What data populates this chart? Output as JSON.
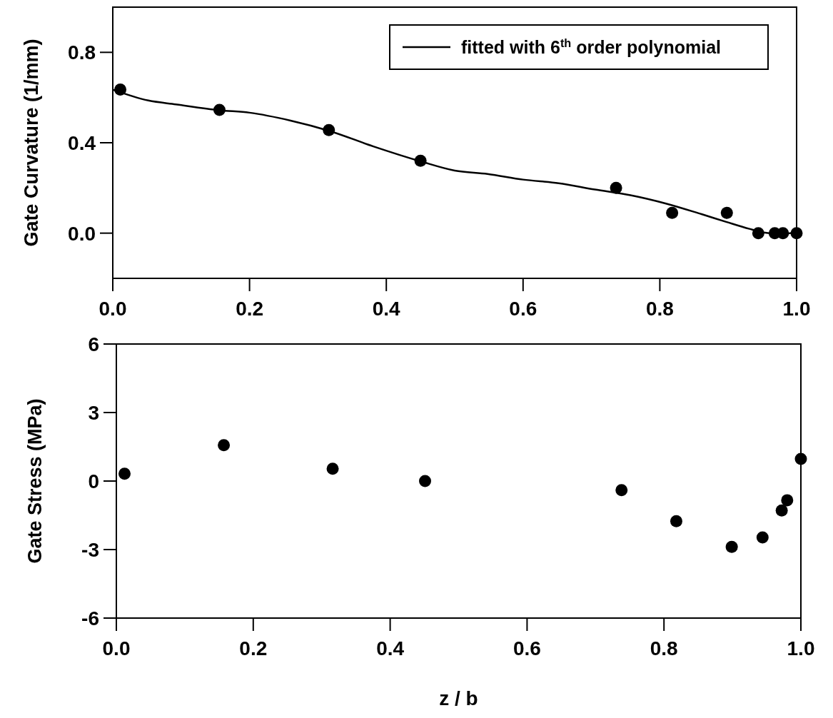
{
  "chart_data": [
    {
      "type": "scatter",
      "ylabel": "Gate Curvature (1/mm)",
      "xlim": [
        0,
        1
      ],
      "ylim": [
        -0.2,
        1.0
      ],
      "xticks": [
        {
          "value": 0,
          "label": "0.0"
        },
        {
          "value": 0.2,
          "label": "0.2"
        },
        {
          "value": 0.4,
          "label": "0.4"
        },
        {
          "value": 0.6,
          "label": "0.6"
        },
        {
          "value": 0.8,
          "label": "0.8"
        },
        {
          "value": 1,
          "label": "1.0"
        }
      ],
      "yticks": [
        {
          "value": 0,
          "label": "0.0"
        },
        {
          "value": 0.4,
          "label": "0.4"
        },
        {
          "value": 0.8,
          "label": "0.8"
        }
      ],
      "legend": "top right",
      "grid": false,
      "series": [
        {
          "marker": "circle",
          "color": "#000000",
          "x": [
            0.011,
            0.156,
            0.316,
            0.45,
            0.736,
            0.818,
            0.898,
            0.944,
            0.968,
            0.98,
            1.0
          ],
          "values": [
            0.635,
            0.545,
            0.456,
            0.32,
            0.2,
            0.09,
            0.09,
            0.0,
            0.0,
            0.0,
            0.0
          ]
        },
        {
          "type": "line",
          "name": "fitted with 6$^{th}$ order polynomial",
          "color": "#000000",
          "line_style": "solid",
          "x": [
            0.0,
            0.052,
            0.092,
            0.156,
            0.2,
            0.26,
            0.316,
            0.381,
            0.45,
            0.5,
            0.548,
            0.6,
            0.652,
            0.705,
            0.757,
            0.809,
            0.861,
            0.897,
            0.931,
            0.952,
            0.976,
            1.0
          ],
          "values": [
            0.635,
            0.587,
            0.57,
            0.544,
            0.533,
            0.498,
            0.453,
            0.384,
            0.318,
            0.277,
            0.262,
            0.237,
            0.221,
            0.193,
            0.168,
            0.131,
            0.084,
            0.05,
            0.019,
            0.003,
            -0.003,
            0.003
          ]
        }
      ]
    },
    {
      "type": "scatter",
      "ylabel": "Gate Stress (MPa)",
      "xlabel": "z / b",
      "xlim": [
        0,
        1
      ],
      "ylim": [
        -6,
        6
      ],
      "xticks": [
        {
          "value": 0,
          "label": "0.0"
        },
        {
          "value": 0.2,
          "label": "0.2"
        },
        {
          "value": 0.4,
          "label": "0.4"
        },
        {
          "value": 0.6,
          "label": "0.6"
        },
        {
          "value": 0.8,
          "label": "0.8"
        },
        {
          "value": 1,
          "label": "1.0"
        }
      ],
      "yticks": [
        -6,
        -3,
        0,
        3,
        6
      ],
      "grid": false,
      "series": [
        {
          "marker": "circle",
          "color": "#000000",
          "x": [
            0.012,
            0.157,
            0.316,
            0.451,
            0.738,
            0.818,
            0.899,
            0.944,
            0.972,
            0.98,
            1.0
          ],
          "values": [
            0.32,
            1.57,
            0.54,
            0.0,
            -0.4,
            -1.76,
            -2.88,
            -2.47,
            -1.29,
            -0.84,
            0.97
          ]
        }
      ]
    }
  ]
}
